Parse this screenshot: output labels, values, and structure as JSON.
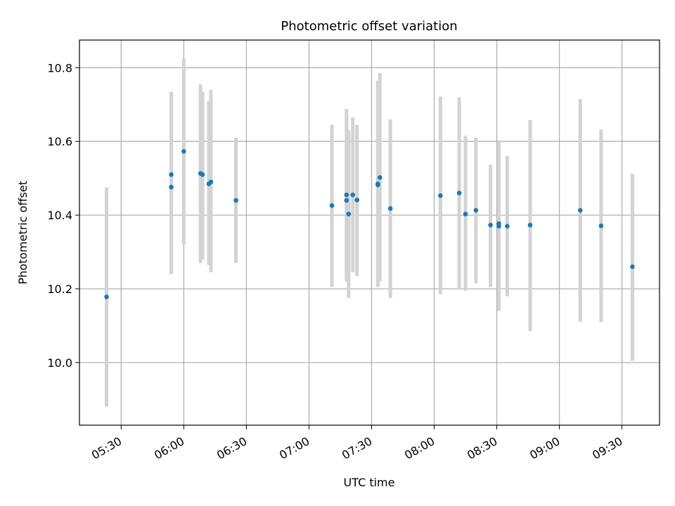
{
  "chart_data": {
    "type": "scatter",
    "title": "Photometric offset variation",
    "xlabel": "UTC time",
    "ylabel": "Photometric offset",
    "xlim": [
      "05:10",
      "09:48"
    ],
    "ylim": [
      9.83,
      10.875
    ],
    "grid": true,
    "x_ticks": [
      "05:30",
      "06:00",
      "06:30",
      "07:00",
      "07:30",
      "08:00",
      "08:30",
      "09:00",
      "09:30"
    ],
    "y_ticks": [
      "10.0",
      "10.2",
      "10.4",
      "10.6",
      "10.8"
    ],
    "marker_color": "#1f77b4",
    "errorbar_color": "#d3d3d3",
    "points": [
      {
        "t": "05:23",
        "y": 10.178,
        "lo": 9.88,
        "hi": 10.475
      },
      {
        "t": "05:54",
        "y": 10.51,
        "lo": 10.3,
        "hi": 10.71
      },
      {
        "t": "05:54",
        "y": 10.476,
        "lo": 10.24,
        "hi": 10.735
      },
      {
        "t": "06:00",
        "y": 10.573,
        "lo": 10.32,
        "hi": 10.825
      },
      {
        "t": "06:08",
        "y": 10.513,
        "lo": 10.27,
        "hi": 10.755
      },
      {
        "t": "06:09",
        "y": 10.51,
        "lo": 10.28,
        "hi": 10.735
      },
      {
        "t": "06:12",
        "y": 10.485,
        "lo": 10.265,
        "hi": 10.71
      },
      {
        "t": "06:13",
        "y": 10.49,
        "lo": 10.245,
        "hi": 10.74
      },
      {
        "t": "06:25",
        "y": 10.44,
        "lo": 10.27,
        "hi": 10.61
      },
      {
        "t": "07:11",
        "y": 10.426,
        "lo": 10.205,
        "hi": 10.645
      },
      {
        "t": "07:18",
        "y": 10.455,
        "lo": 10.22,
        "hi": 10.688
      },
      {
        "t": "07:18",
        "y": 10.44,
        "lo": 10.24,
        "hi": 10.66
      },
      {
        "t": "07:19",
        "y": 10.403,
        "lo": 10.175,
        "hi": 10.63
      },
      {
        "t": "07:21",
        "y": 10.455,
        "lo": 10.245,
        "hi": 10.665
      },
      {
        "t": "07:23",
        "y": 10.441,
        "lo": 10.235,
        "hi": 10.645
      },
      {
        "t": "07:33",
        "y": 10.485,
        "lo": 10.21,
        "hi": 10.765
      },
      {
        "t": "07:33",
        "y": 10.482,
        "lo": 10.205,
        "hi": 10.76
      },
      {
        "t": "07:34",
        "y": 10.502,
        "lo": 10.22,
        "hi": 10.785
      },
      {
        "t": "07:39",
        "y": 10.418,
        "lo": 10.175,
        "hi": 10.66
      },
      {
        "t": "08:03",
        "y": 10.453,
        "lo": 10.185,
        "hi": 10.722
      },
      {
        "t": "08:12",
        "y": 10.46,
        "lo": 10.2,
        "hi": 10.72
      },
      {
        "t": "08:15",
        "y": 10.403,
        "lo": 10.195,
        "hi": 10.615
      },
      {
        "t": "08:20",
        "y": 10.413,
        "lo": 10.215,
        "hi": 10.61
      },
      {
        "t": "08:27",
        "y": 10.373,
        "lo": 10.205,
        "hi": 10.537
      },
      {
        "t": "08:31",
        "y": 10.37,
        "lo": 10.14,
        "hi": 10.603
      },
      {
        "t": "08:31",
        "y": 10.377,
        "lo": 10.155,
        "hi": 10.597
      },
      {
        "t": "08:35",
        "y": 10.37,
        "lo": 10.18,
        "hi": 10.56
      },
      {
        "t": "08:46",
        "y": 10.373,
        "lo": 10.085,
        "hi": 10.658
      },
      {
        "t": "09:10",
        "y": 10.413,
        "lo": 10.11,
        "hi": 10.715
      },
      {
        "t": "09:20",
        "y": 10.371,
        "lo": 10.11,
        "hi": 10.632
      },
      {
        "t": "09:35",
        "y": 10.26,
        "lo": 10.005,
        "hi": 10.512
      }
    ]
  }
}
